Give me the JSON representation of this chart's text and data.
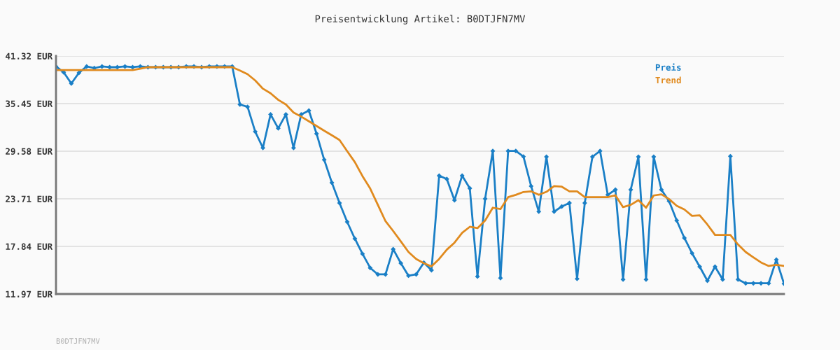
{
  "chart_data": {
    "type": "line",
    "title": "Preisentwicklung Artikel: B0DTJFN7MV",
    "categories": [
      null,
      null,
      null,
      null,
      null,
      null,
      null,
      null,
      null,
      null,
      null,
      null,
      null,
      null,
      null,
      null,
      null,
      null,
      null,
      null,
      null,
      null,
      null,
      null,
      null,
      null,
      null,
      null,
      null,
      null,
      null,
      null,
      null,
      null,
      null,
      null,
      null,
      null,
      null,
      null,
      null,
      null,
      null,
      null,
      null,
      null,
      null,
      null,
      null,
      null,
      null,
      null,
      null,
      null,
      null,
      null,
      null,
      null,
      null,
      null,
      null,
      null,
      null,
      null,
      null,
      null,
      null,
      null,
      null,
      null,
      null,
      null,
      null,
      null,
      null,
      null,
      null,
      null,
      null,
      null,
      null,
      null,
      null,
      null,
      null,
      null,
      null,
      null,
      null,
      null,
      null,
      null,
      null,
      null,
      null,
      null
    ],
    "series": [
      {
        "name": "Preis",
        "color": "#1a7fc6",
        "marker": "diamond",
        "values": [
          40.03,
          39.31,
          37.93,
          39.25,
          40.03,
          39.83,
          40.03,
          39.94,
          39.94,
          40.03,
          39.94,
          40.03,
          39.94,
          39.94,
          39.94,
          39.94,
          39.94,
          40.03,
          40.03,
          39.94,
          40.03,
          40.03,
          40.03,
          40.03,
          35.34,
          35.05,
          31.99,
          29.99,
          34.12,
          32.4,
          34.12,
          29.99,
          34.12,
          34.59,
          31.74,
          28.52,
          25.7,
          23.19,
          20.86,
          18.79,
          16.92,
          15.19,
          14.39,
          14.39,
          17.5,
          15.77,
          14.22,
          14.39,
          15.83,
          14.91,
          26.56,
          26.15,
          23.54,
          26.56,
          25.0,
          14.13,
          23.71,
          29.61,
          13.93,
          29.61,
          29.61,
          28.92,
          25.27,
          22.13,
          28.89,
          22.13,
          22.76,
          23.19,
          13.84,
          23.19,
          28.89,
          29.61,
          24.2,
          24.83,
          13.76,
          24.83,
          28.89,
          13.76,
          28.89,
          24.83,
          23.42,
          21.03,
          18.88,
          17.0,
          15.34,
          13.61,
          15.34,
          13.76,
          28.95,
          13.76,
          13.29,
          13.29,
          13.29,
          13.29,
          16.2,
          13.24
        ]
      },
      {
        "name": "Trend",
        "color": "#e08a1e",
        "marker": "none",
        "values": [
          39.59,
          39.59,
          39.59,
          39.59,
          39.59,
          39.59,
          39.59,
          39.59,
          39.59,
          39.59,
          39.59,
          39.75,
          39.94,
          39.94,
          39.94,
          39.94,
          39.94,
          39.94,
          39.94,
          39.94,
          39.94,
          39.94,
          39.94,
          39.94,
          39.53,
          39.08,
          38.3,
          37.29,
          36.72,
          35.91,
          35.34,
          34.35,
          33.84,
          33.27,
          32.69,
          32.11,
          31.54,
          30.96,
          29.58,
          28.23,
          26.5,
          24.98,
          22.96,
          20.95,
          19.74,
          18.45,
          17.15,
          16.29,
          15.77,
          15.37,
          16.29,
          17.44,
          18.3,
          19.51,
          20.26,
          20.09,
          21.03,
          22.61,
          22.44,
          23.91,
          24.2,
          24.55,
          24.63,
          24.2,
          24.57,
          25.27,
          25.2,
          24.63,
          24.63,
          23.91,
          23.91,
          23.91,
          23.91,
          24.14,
          22.68,
          22.96,
          23.54,
          22.61,
          24.12,
          24.26,
          23.68,
          22.85,
          22.39,
          21.61,
          21.67,
          20.54,
          19.25,
          19.25,
          19.25,
          18.07,
          17.15,
          16.49,
          15.86,
          15.43,
          15.57,
          15.43
        ]
      }
    ],
    "ylim": [
      11.97,
      41.32
    ],
    "yticks": [
      {
        "value": 11.97,
        "label": "11.97 EUR"
      },
      {
        "value": 17.84,
        "label": "17.84 EUR"
      },
      {
        "value": 23.71,
        "label": "23.71 EUR"
      },
      {
        "value": 29.58,
        "label": "29.58 EUR"
      },
      {
        "value": 35.45,
        "label": "35.45 EUR"
      },
      {
        "value": 41.32,
        "label": "41.32 EUR"
      }
    ],
    "grid": "y",
    "legend": "top right",
    "line_style": "solid",
    "annotations": [
      "B0DTJFN7MV"
    ]
  }
}
